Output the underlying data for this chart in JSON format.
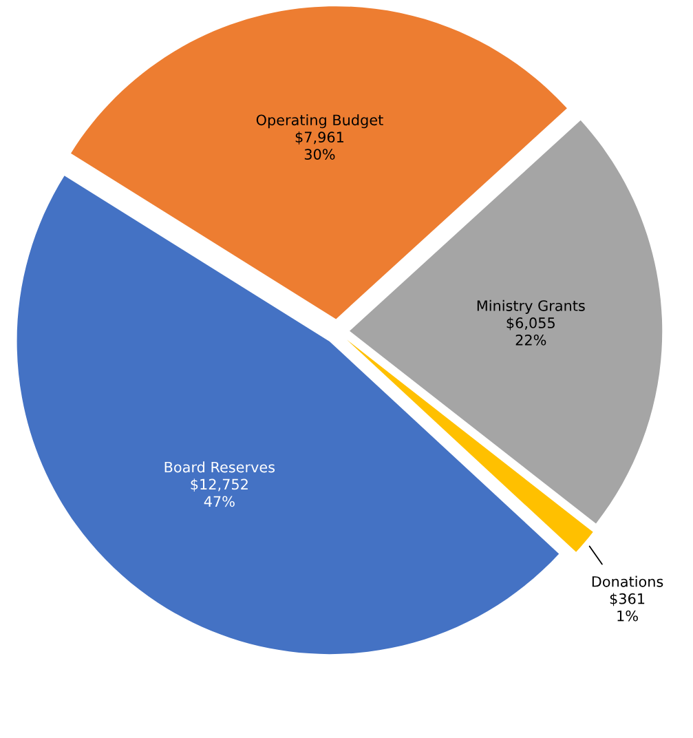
{
  "chart_data": {
    "type": "pie",
    "categories": [
      "Operating Budget",
      "Ministry Grants",
      "Donations",
      "Board Reserves"
    ],
    "values": [
      7961,
      6055,
      361,
      12752
    ],
    "colors": [
      "#ed7d31",
      "#a5a5a5",
      "#ffc000",
      "#4472c4"
    ],
    "value_labels": [
      "$7,961\n30%",
      "$6,055\n22%",
      "$361\n1%",
      "$12,752\n47%"
    ]
  }
}
